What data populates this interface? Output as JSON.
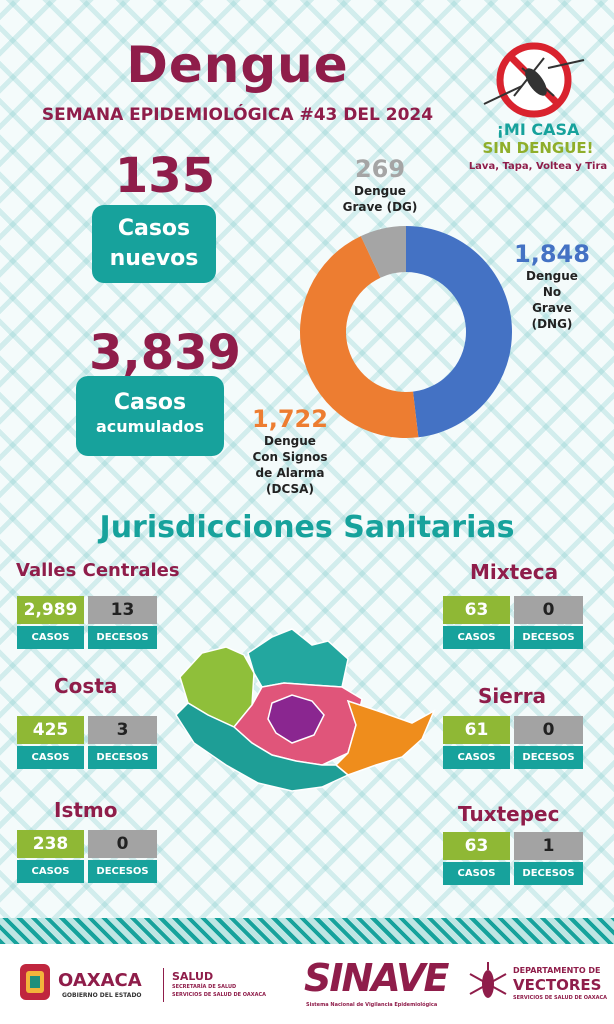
{
  "title": "Dengue",
  "subtitle": "SEMANA EPIDEMIOLÓGICA #43 DEL 2024",
  "casos_nuevos": {
    "value": "135",
    "label_line1": "Casos",
    "label_line2": "nuevos"
  },
  "casos_acumulados": {
    "value": "3,839",
    "label_line1": "Casos",
    "label_line2": "acumulados"
  },
  "slogan": {
    "line1": "¡MI CASA",
    "line2": "SIN DENGUE!",
    "line3": "Lava, Tapa, Voltea y Tira"
  },
  "colors": {
    "maroon": "#8f1d4a",
    "teal": "#17a29c",
    "dng": "#4472c4",
    "dcsa": "#ed7d31",
    "dg": "#a5a5a5",
    "casos_green": "#8fb835"
  },
  "chart_data": {
    "type": "pie",
    "donut": true,
    "slices": [
      {
        "name": "Dengue No Grave (DNG)",
        "label_num": "1,848",
        "label_lines": [
          "Dengue",
          "No",
          "Grave",
          "(DNG)"
        ],
        "value": 1848,
        "color": "#4472c4"
      },
      {
        "name": "Dengue Con Signos de Alarma (DCSA)",
        "label_num": "1,722",
        "label_lines": [
          "Dengue",
          "Con Signos",
          "de Alarma",
          "(DCSA)"
        ],
        "value": 1722,
        "color": "#ed7d31"
      },
      {
        "name": "Dengue Grave (DG)",
        "label_num": "269",
        "label_lines": [
          "Dengue",
          "Grave (DG)"
        ],
        "value": 269,
        "color": "#a5a5a5"
      }
    ]
  },
  "jurisdicciones_title": "Jurisdicciones Sanitarias",
  "casos_label": "CASOS",
  "decesos_label": "DECESOS",
  "regions": {
    "valles": {
      "name": "Valles Centrales",
      "casos": "2,989",
      "decesos": "13"
    },
    "costa": {
      "name": "Costa",
      "casos": "425",
      "decesos": "3"
    },
    "istmo": {
      "name": "Istmo",
      "casos": "238",
      "decesos": "0"
    },
    "mixteca": {
      "name": "Mixteca",
      "casos": "63",
      "decesos": "0"
    },
    "sierra": {
      "name": "Sierra",
      "casos": "61",
      "decesos": "0"
    },
    "tuxtepec": {
      "name": "Tuxtepec",
      "casos": "63",
      "decesos": "1"
    }
  },
  "footer": {
    "oaxaca": "OAXACA",
    "oaxaca_sub": "GOBIERNO DEL ESTADO",
    "salud": "SALUD",
    "salud_sub1": "SECRETARÍA DE SALUD",
    "salud_sub2": "SERVICIOS DE SALUD DE OAXACA",
    "sinave": "SINAVE",
    "sinave_sub": "Sistema Nacional de Vigilancia Epidemiológica",
    "depto1": "DEPARTAMENTO DE",
    "depto2": "VECTORES",
    "depto3": "SERVICIOS DE SALUD DE OAXACA"
  }
}
